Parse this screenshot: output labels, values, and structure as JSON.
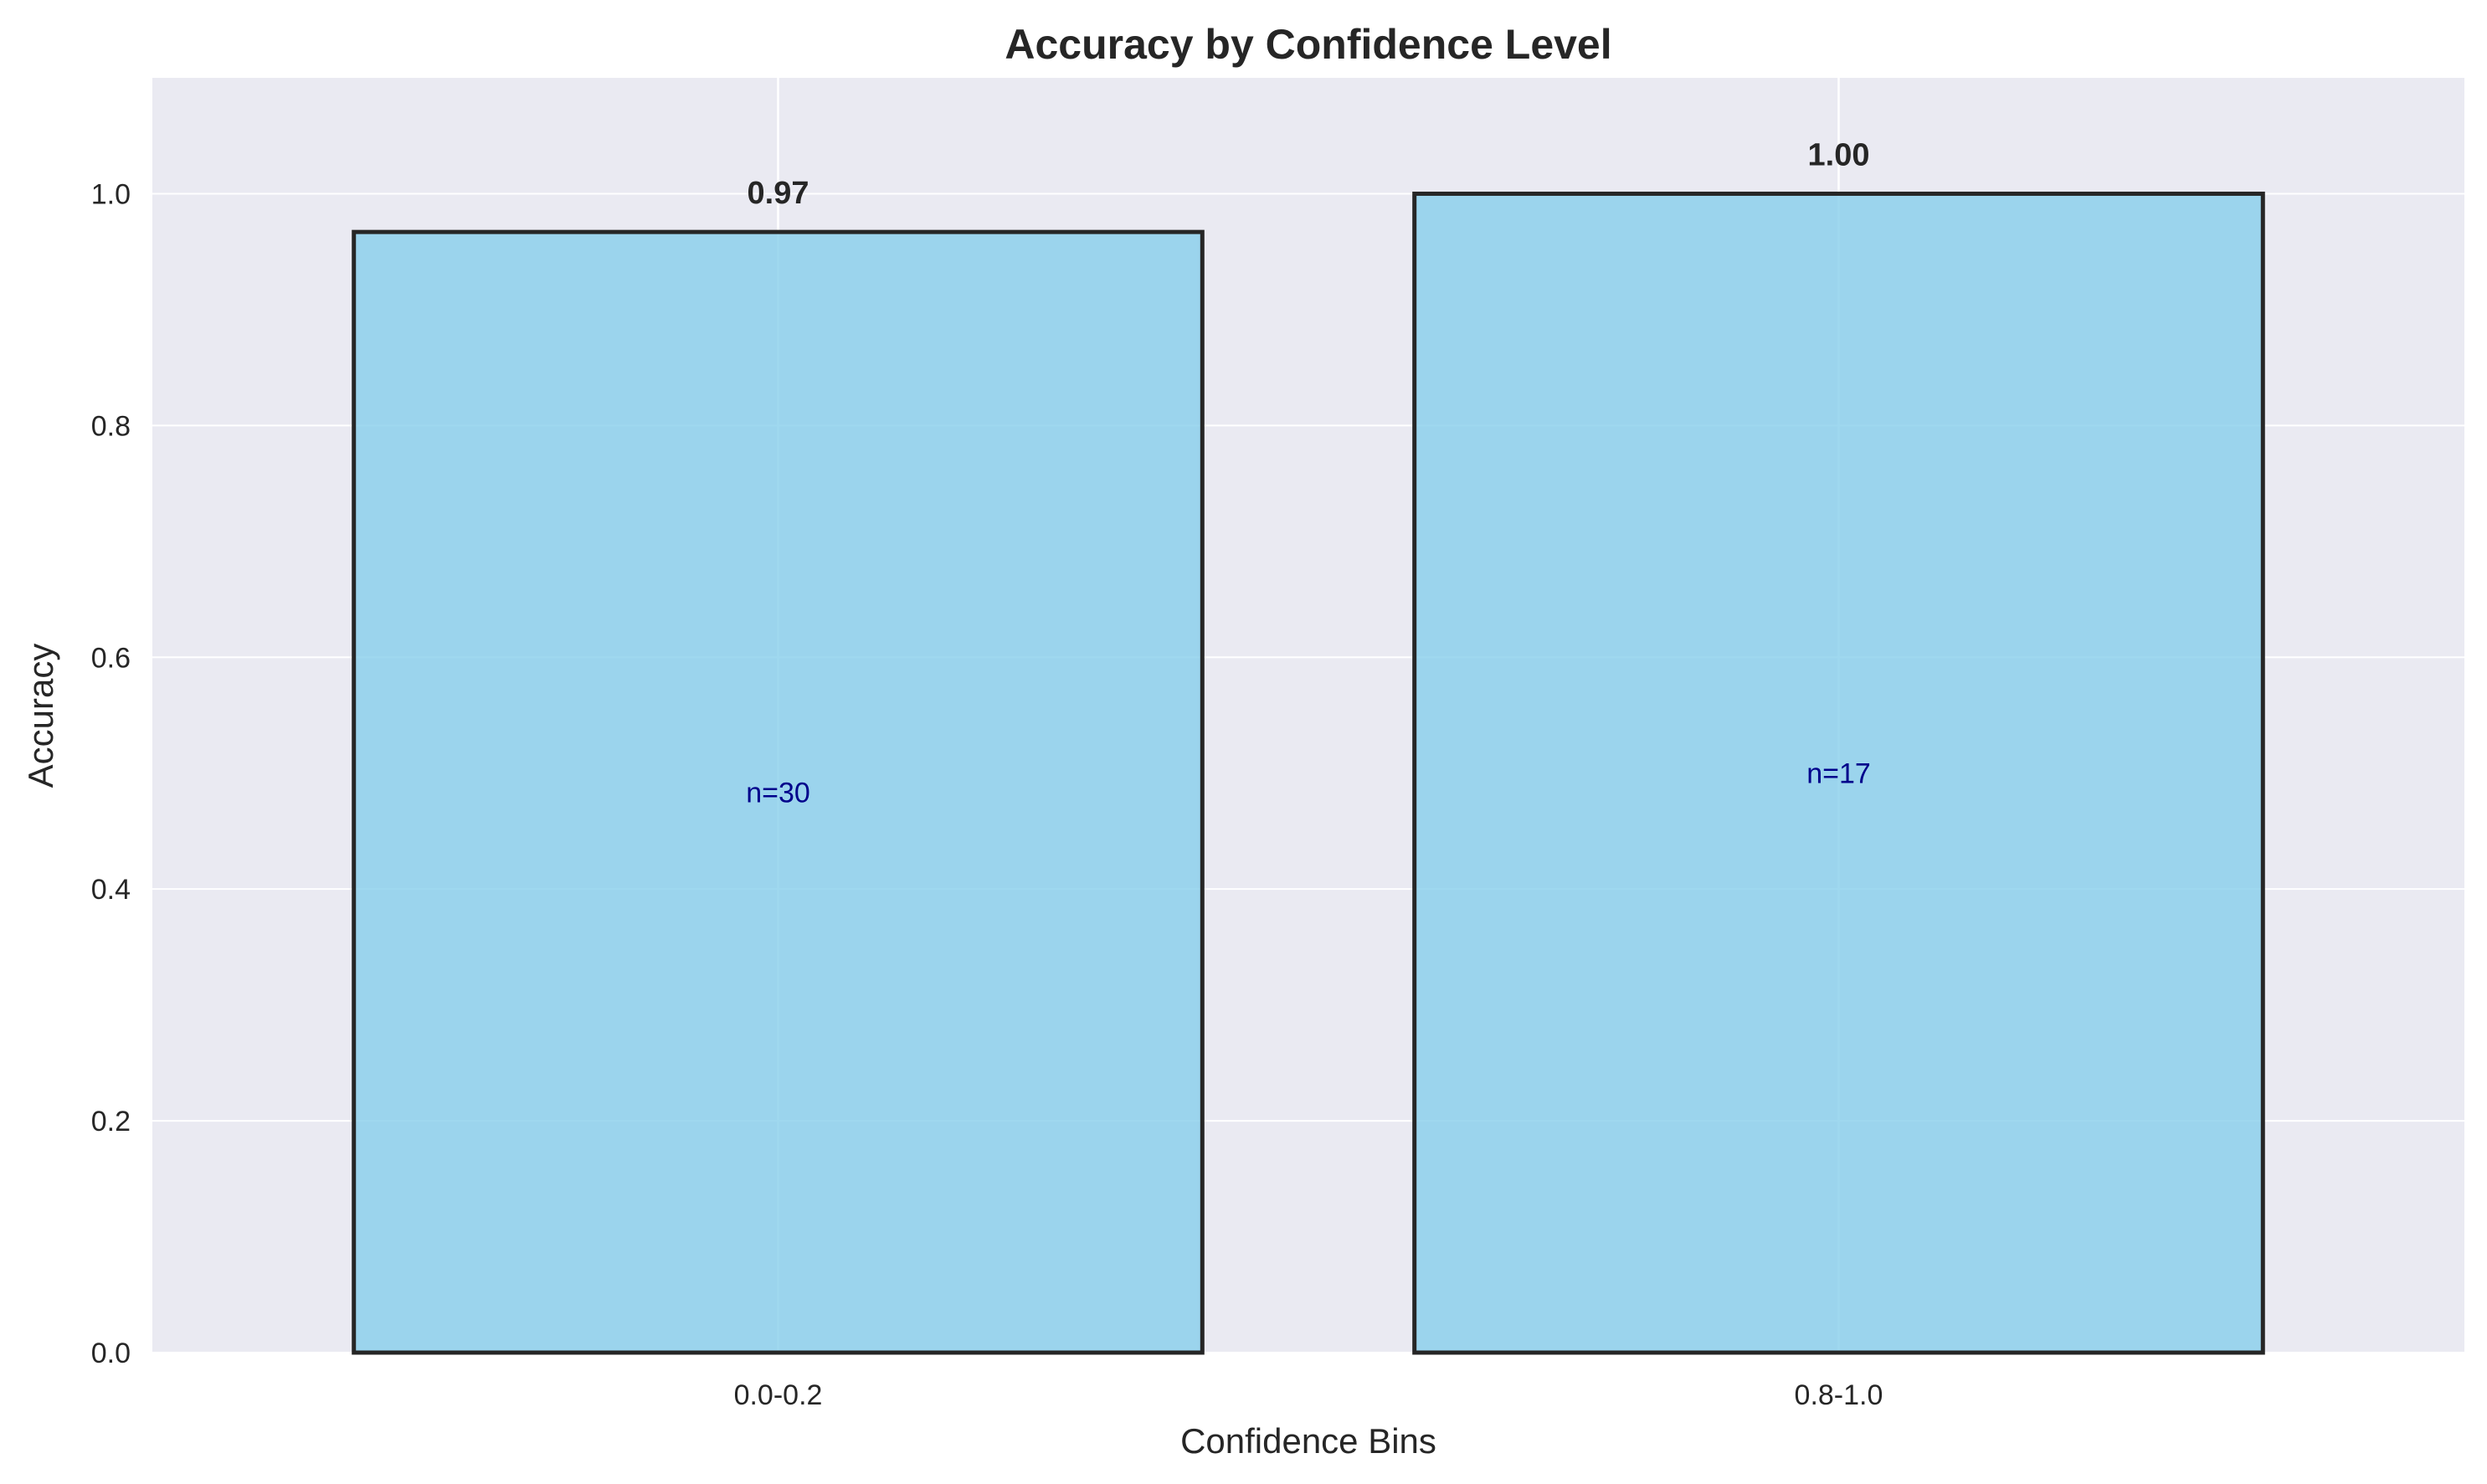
{
  "chart_data": {
    "type": "bar",
    "title": "Accuracy by Confidence Level",
    "xlabel": "Confidence Bins",
    "ylabel": "Accuracy",
    "categories": [
      "0.0-0.2",
      "0.8-1.0"
    ],
    "values": [
      0.967,
      1.0
    ],
    "value_labels": [
      "0.97",
      "1.00"
    ],
    "count_labels": [
      "n=30",
      "n=17"
    ],
    "ylim": [
      0,
      1.1
    ],
    "yticks": [
      0.0,
      0.2,
      0.4,
      0.6,
      0.8,
      1.0
    ],
    "ytick_labels": [
      "0.0",
      "0.2",
      "0.4",
      "0.6",
      "0.8",
      "1.0"
    ],
    "grid": true,
    "colors": {
      "plot_background": "#eaeaf2",
      "bar_fill": "#87ceeb",
      "bar_edge": "#262626",
      "count_text": "#00008b",
      "grid": "#ffffff"
    }
  }
}
